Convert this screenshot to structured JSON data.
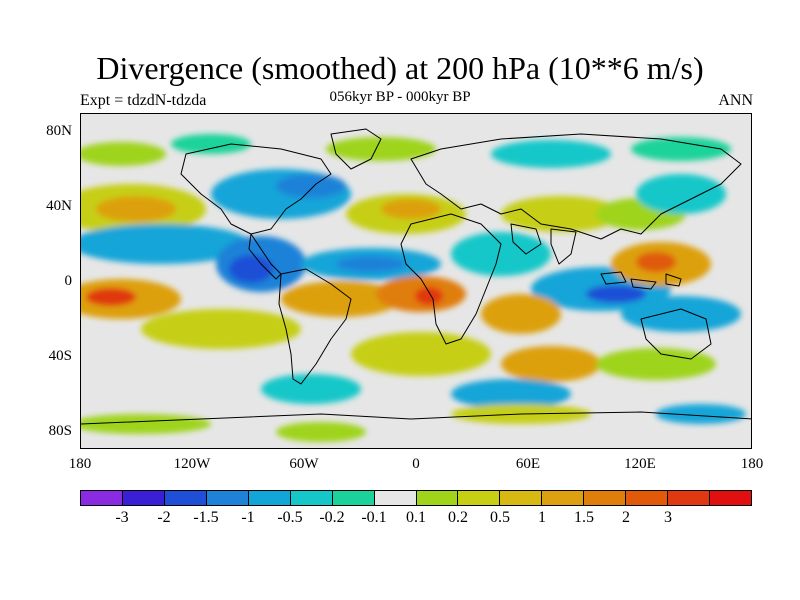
{
  "header": {
    "title": "Divergence (smoothed) at 200 hPa (10**6 m/s)",
    "subtitle": "056kyr BP - 000kyr BP",
    "left_label": "Expt = tdzdN-tdzda",
    "right_label": "ANN"
  },
  "map": {
    "projection": "cylindrical-equidistant",
    "background_color": "#e6e6e6",
    "lat_labels": [
      "80N",
      "40N",
      "0",
      "40S",
      "80S"
    ],
    "lon_labels": [
      "180",
      "120W",
      "60W",
      "0",
      "60E",
      "120E",
      "180"
    ],
    "field": "200 hPa divergence difference (smoothed)"
  },
  "colorbar": {
    "colors": [
      "#8a2be2",
      "#3a1fd6",
      "#1f4fd6",
      "#1e82d8",
      "#12a5d8",
      "#16c7c9",
      "#1bd39a",
      "#e6e6e6",
      "#9fd41a",
      "#c6cf14",
      "#d8b914",
      "#dda010",
      "#e07e0c",
      "#e05a0a",
      "#e03810",
      "#e00f10"
    ],
    "labels": [
      "-3",
      "-2",
      "-1.5",
      "-1",
      "-0.5",
      "-0.2",
      "-0.1",
      "0.1",
      "0.2",
      "0.5",
      "1",
      "1.5",
      "2",
      "3"
    ]
  }
}
